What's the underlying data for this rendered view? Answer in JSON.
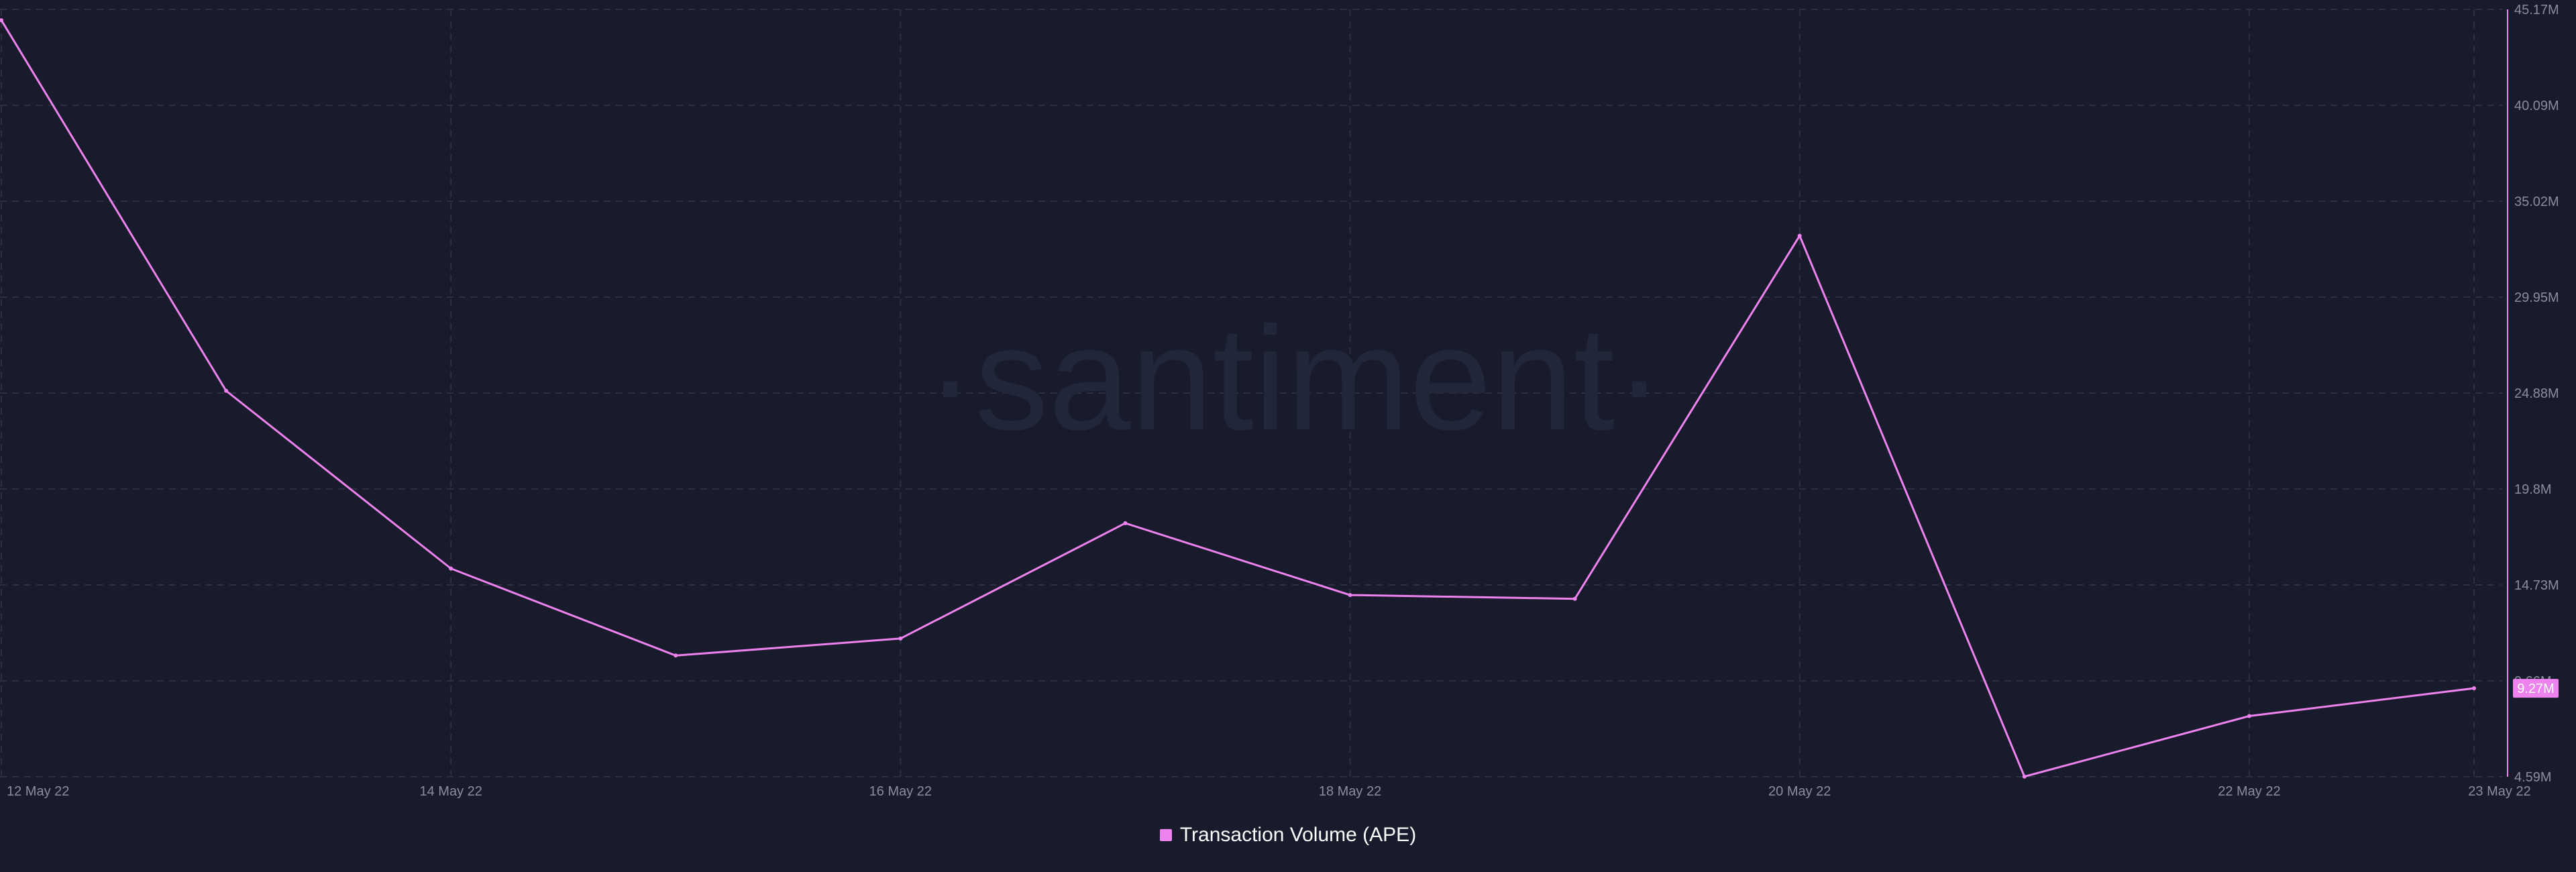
{
  "watermark": "·santiment·",
  "colors": {
    "background": "#181b2b",
    "series": "#ee82ee",
    "grid": "#2c2f42",
    "axis_text": "#8a8d9f"
  },
  "current_value_label": "9.27M",
  "chart_data": {
    "type": "line",
    "x": [
      "12 May 22",
      "13 May 22",
      "14 May 22",
      "15 May 22",
      "16 May 22",
      "17 May 22",
      "18 May 22",
      "19 May 22",
      "20 May 22",
      "21 May 22",
      "22 May 22",
      "23 May 22"
    ],
    "x_tick_labels": [
      "12 May 22",
      "14 May 22",
      "16 May 22",
      "18 May 22",
      "20 May 22",
      "22 May 22",
      "23 May 22"
    ],
    "series": [
      {
        "name": "Transaction Volume (APE)",
        "values": [
          44.6,
          25.0,
          15.6,
          11.0,
          11.9,
          18.0,
          14.2,
          14.0,
          33.2,
          4.6,
          7.8,
          9.27
        ]
      }
    ],
    "y_tick_labels": [
      "45.17M",
      "40.09M",
      "35.02M",
      "29.95M",
      "24.88M",
      "19.8M",
      "14.73M",
      "9.66M",
      "4.59M"
    ],
    "ylim": [
      4.59,
      45.17
    ],
    "y_axis_position": "right",
    "grid": true,
    "legend_position": "bottom-center"
  }
}
